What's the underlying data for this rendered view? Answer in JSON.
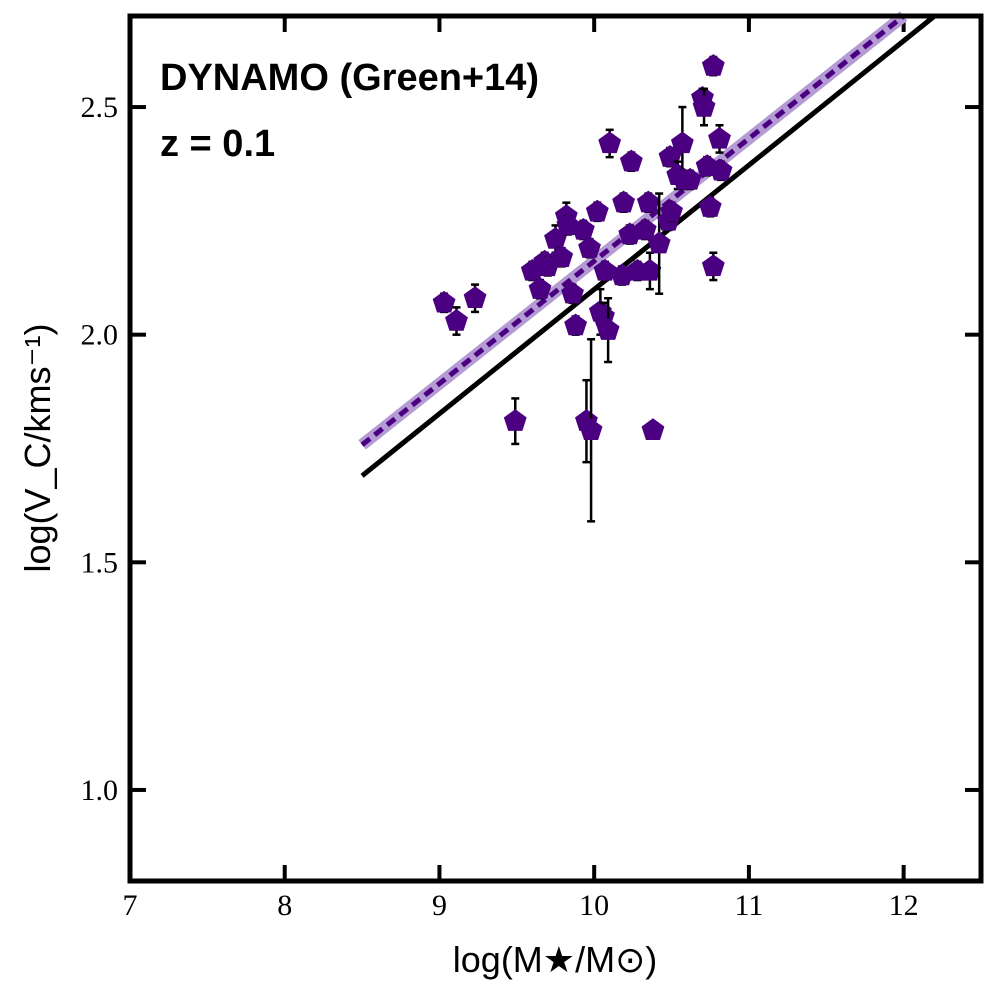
{
  "chart_data": {
    "type": "scatter",
    "annotations": [
      "DYNAMO (Green+14)",
      "z = 0.1"
    ],
    "xlabel": "log(M★/M⊙)",
    "ylabel": "log(V_C/kms⁻¹)",
    "xlim": [
      7,
      12.5
    ],
    "ylim": [
      0.8,
      2.7
    ],
    "xticks": [
      7,
      8,
      9,
      10,
      11,
      12
    ],
    "yticks": [
      {
        "value": 1,
        "label": "1.0"
      },
      {
        "value": 1.5,
        "label": "1.5"
      },
      {
        "value": 2,
        "label": "2.0"
      },
      {
        "value": 2.5,
        "label": "2.5"
      }
    ],
    "grid": false,
    "series": [
      {
        "color": "#4b0082",
        "x": [
          9.03,
          9.11,
          9.23,
          9.49,
          9.6,
          9.65,
          9.68,
          9.7,
          9.75,
          9.79,
          9.82,
          9.83,
          9.86,
          9.88,
          9.93,
          9.95,
          9.97,
          9.98,
          10.02,
          10.04,
          10.06,
          10.07,
          10.09,
          10.1,
          10.18,
          10.19,
          10.23,
          10.24,
          10.28,
          10.33,
          10.35,
          10.36,
          10.38,
          10.42,
          10.48,
          10.5,
          10.49,
          10.54,
          10.57,
          10.58,
          10.62,
          10.7,
          10.71,
          10.73,
          10.75,
          10.77,
          10.77,
          10.81,
          10.82
        ],
        "values": [
          2.07,
          2.03,
          2.08,
          1.81,
          2.14,
          2.1,
          2.16,
          2.15,
          2.21,
          2.17,
          2.26,
          2.24,
          2.09,
          2.02,
          2.23,
          1.81,
          2.19,
          1.79,
          2.27,
          2.05,
          2.04,
          2.14,
          2.01,
          2.42,
          2.13,
          2.29,
          2.22,
          2.38,
          2.14,
          2.23,
          2.29,
          2.14,
          1.79,
          2.2,
          2.25,
          2.27,
          2.39,
          2.35,
          2.42,
          2.34,
          2.34,
          2.52,
          2.5,
          2.37,
          2.28,
          2.15,
          2.59,
          2.43,
          2.36
        ],
        "errors": [
          0.02,
          0.03,
          0.03,
          0.05,
          0.02,
          0.02,
          0.02,
          0.02,
          0.03,
          0.02,
          0.03,
          0.02,
          0.02,
          0.02,
          0.02,
          0.09,
          0.02,
          0.2,
          0.02,
          0.05,
          0.03,
          0.02,
          0.07,
          0.03,
          0.02,
          0.02,
          0.02,
          0.02,
          0.02,
          0.02,
          0.02,
          0.04,
          0.01,
          0.11,
          0.02,
          0.02,
          0.02,
          0.03,
          0.08,
          0.02,
          0.02,
          0.02,
          0.04,
          0.02,
          0.02,
          0.03,
          0.02,
          0.03,
          0.02
        ]
      }
    ],
    "lines": [
      {
        "x": [
          8.5,
          12.2
        ],
        "values": [
          1.69,
          2.7
        ],
        "color": "#000000",
        "style": "solid"
      },
      {
        "x": [
          8.5,
          12.0
        ],
        "values": [
          1.758,
          2.7
        ],
        "color": "#4b0082",
        "style": "dashed",
        "band_color": "#b49bd3"
      }
    ]
  }
}
